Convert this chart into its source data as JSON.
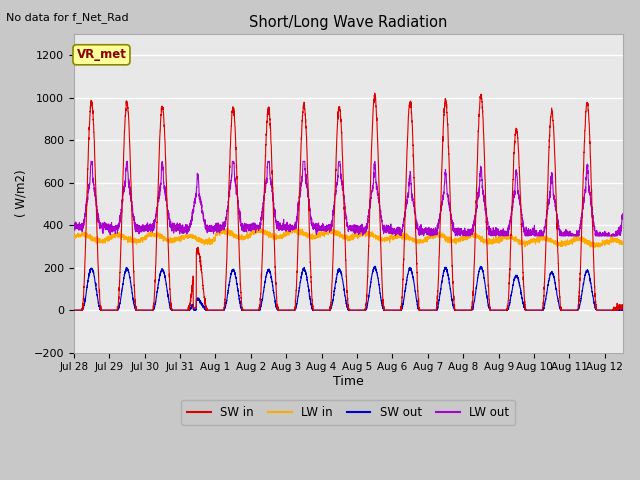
{
  "title": "Short/Long Wave Radiation",
  "ylabel": "( W/m2)",
  "xlabel": "Time",
  "no_data_text": "No data for f_Net_Rad",
  "legend_label": "VR_met",
  "ylim": [
    -200,
    1300
  ],
  "yticks": [
    -200,
    0,
    200,
    400,
    600,
    800,
    1000,
    1200
  ],
  "fig_bg_color": "#c8c8c8",
  "plot_bg_color": "#e8e8e8",
  "grid_color": "#ffffff",
  "sw_in_color": "#dd0000",
  "lw_in_color": "#ffaa00",
  "sw_out_color": "#0000cc",
  "lw_out_color": "#aa00cc",
  "vr_met_face": "#ffff99",
  "vr_met_edge": "#888800",
  "vr_met_text": "#880000",
  "num_days": 15.5,
  "time_labels": [
    "Jul 28",
    "Jul 29",
    "Jul 30",
    "Jul 31",
    "Aug 1",
    "Aug 2",
    "Aug 3",
    "Aug 4",
    "Aug 5",
    "Aug 6",
    "Aug 7",
    "Aug 8",
    "Aug 9",
    "Aug 10",
    "Aug 11",
    "Aug 12"
  ],
  "time_label_days": [
    0,
    1,
    2,
    3,
    4,
    5,
    6,
    7,
    8,
    9,
    10,
    11,
    12,
    13,
    14,
    15
  ]
}
